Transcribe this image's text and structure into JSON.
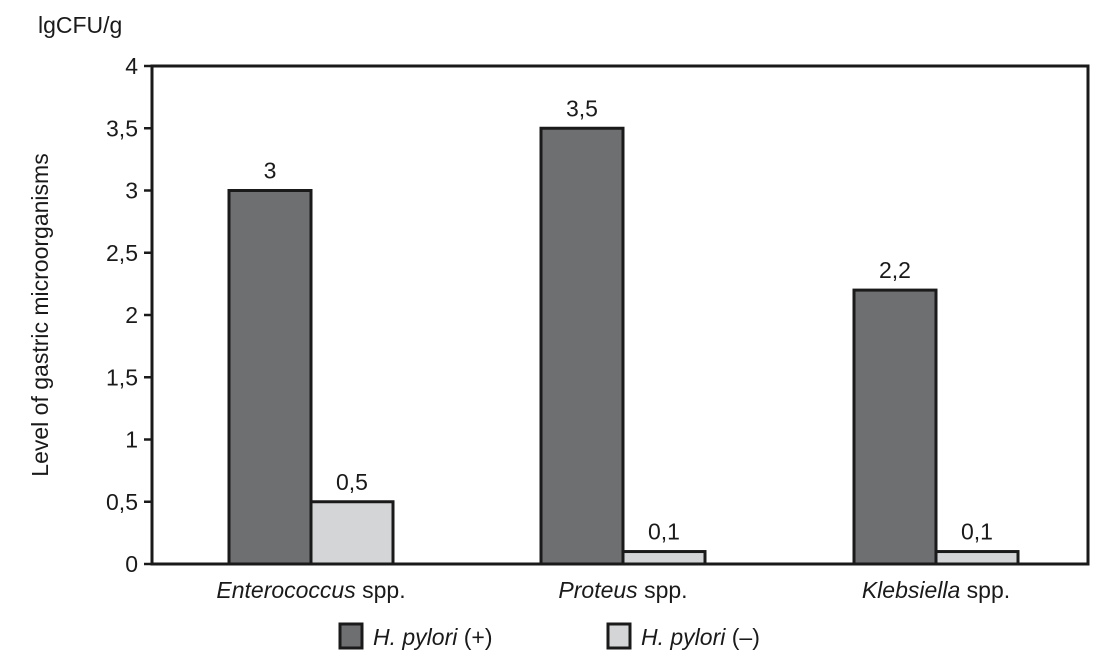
{
  "chart_data": {
    "type": "bar",
    "unit_label": "lgCFU/g",
    "ylabel": "Level of gastric microorganisms",
    "xlabel": "",
    "ylim": [
      0,
      4
    ],
    "yticks": [
      0,
      0.5,
      1,
      1.5,
      2,
      2.5,
      3,
      3.5,
      4
    ],
    "ytick_labels": [
      "0",
      "0,5",
      "1",
      "1,5",
      "2",
      "2,5",
      "3",
      "3,5",
      "4"
    ],
    "categories": [
      {
        "genus": "Enterococcus",
        "suffix": " spp."
      },
      {
        "genus": "Proteus",
        "suffix": " spp."
      },
      {
        "genus": "Klebsiella",
        "suffix": " spp."
      }
    ],
    "series": [
      {
        "name": "H. pylori (+)",
        "name_italic": "H. pylori",
        "name_suffix": " (+)",
        "color": "#6e6f71",
        "values": [
          3,
          3.5,
          2.2
        ],
        "labels": [
          "3",
          "3,5",
          "2,2"
        ]
      },
      {
        "name": "H. pylori (–)",
        "name_italic": "H. pylori",
        "name_suffix": " (–)",
        "color": "#d4d5d7",
        "values": [
          0.5,
          0.1,
          0.1
        ],
        "labels": [
          "0,5",
          "0,1",
          "0,1"
        ]
      }
    ],
    "grid": false,
    "legend_position": "bottom"
  }
}
